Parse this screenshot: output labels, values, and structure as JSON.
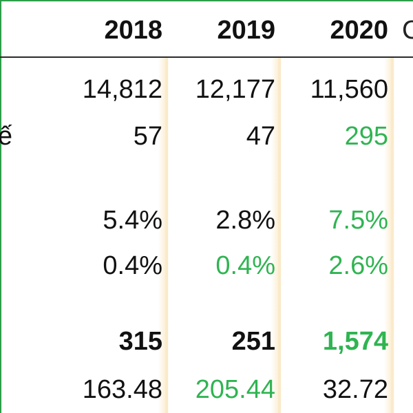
{
  "header": {
    "years": [
      "2018",
      "2019",
      "2020"
    ],
    "next_col_partial": "C"
  },
  "row_labels": {
    "row2_partial": "ế"
  },
  "rows": [
    {
      "values": [
        "14,812",
        "12,177",
        "11,560"
      ],
      "bold": false
    },
    {
      "values": [
        "57",
        "47",
        "295"
      ],
      "bold": false
    },
    {
      "values": [
        "5.4%",
        "2.8%",
        "7.5%"
      ],
      "bold": false
    },
    {
      "values": [
        "0.4%",
        "0.4%",
        "2.6%"
      ],
      "bold": false
    },
    {
      "values": [
        "315",
        "251",
        "1,574"
      ],
      "bold": true
    },
    {
      "values": [
        "163.48",
        "205.44",
        "32.72"
      ],
      "bold": false
    }
  ],
  "colors": {
    "frame": "#2e9e4a",
    "highlight_green": "#2fb451",
    "text": "#111111",
    "column_band": "#fae8c4"
  }
}
